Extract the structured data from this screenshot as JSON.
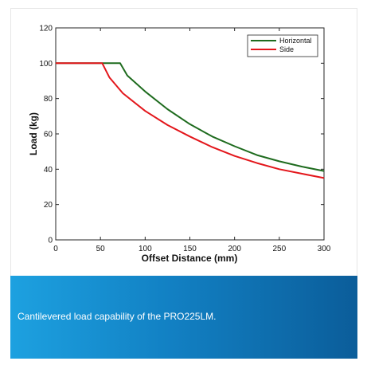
{
  "caption": "Cantilevered load capability of the PRO225LM.",
  "colors": {
    "horizontal": "#1e6b1e",
    "side": "#e3161b",
    "caption_gradient": [
      "#1da1e0",
      "#1281c4",
      "#0b5d9a"
    ]
  },
  "chart_data": {
    "type": "line",
    "xlabel": "Offset Distance (mm)",
    "ylabel": "Load (kg)",
    "xlim": [
      0,
      300
    ],
    "ylim": [
      0,
      120
    ],
    "xticks": [
      0,
      50,
      100,
      150,
      200,
      250,
      300
    ],
    "yticks": [
      0,
      20,
      40,
      60,
      80,
      100,
      120
    ],
    "grid": false,
    "legend_position": "top-right",
    "series": [
      {
        "name": "Horizontal",
        "color": "#1e6b1e",
        "x": [
          0,
          25,
          50,
          72,
          80,
          100,
          125,
          150,
          175,
          200,
          225,
          250,
          275,
          300
        ],
        "y": [
          100,
          100,
          100,
          100,
          93,
          84,
          74,
          65.5,
          58.5,
          53,
          48,
          44.5,
          41.5,
          39
        ]
      },
      {
        "name": "Side",
        "color": "#e3161b",
        "x": [
          0,
          25,
          50,
          52,
          60,
          75,
          100,
          125,
          150,
          175,
          200,
          225,
          250,
          275,
          300
        ],
        "y": [
          100,
          100,
          100,
          100,
          92,
          83,
          73,
          65,
          58.5,
          52.5,
          47.5,
          43.5,
          40,
          37.5,
          35
        ]
      }
    ]
  }
}
